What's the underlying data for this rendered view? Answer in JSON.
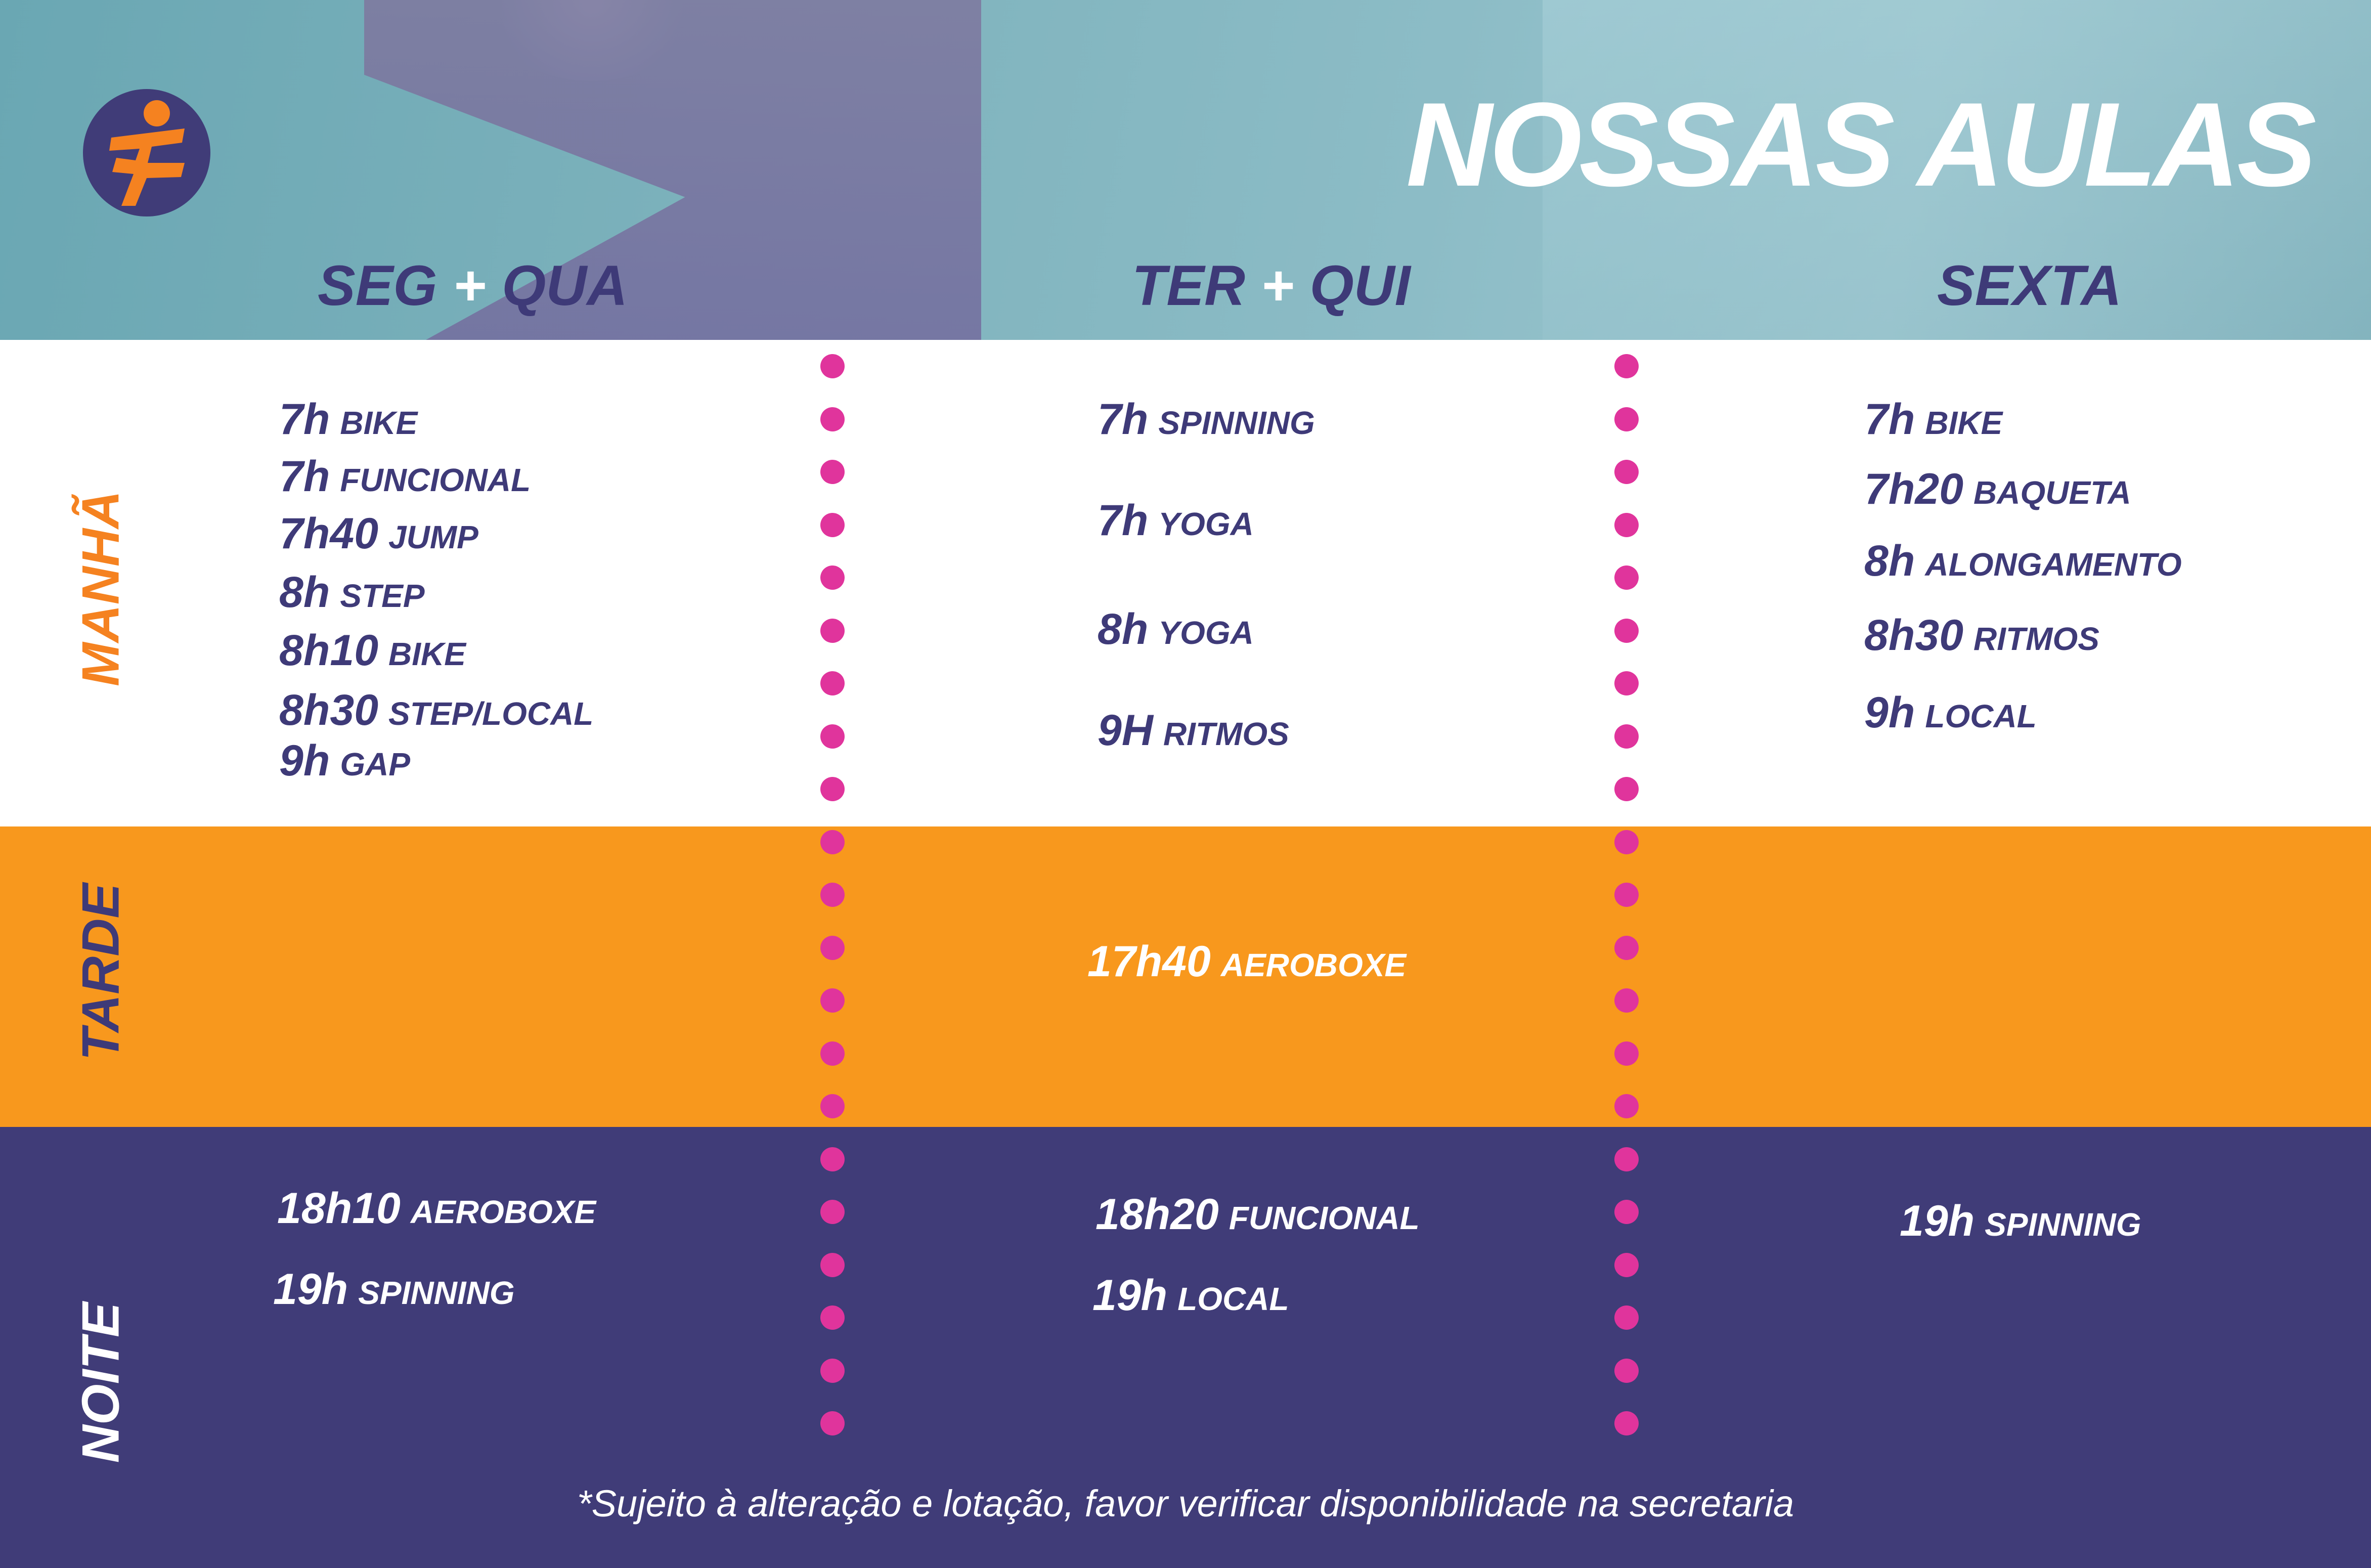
{
  "header": {
    "title": "NOSSAS AULAS"
  },
  "days": [
    {
      "a": "SEG",
      "plus": "+",
      "b": "QUA"
    },
    {
      "a": "TER",
      "plus": "+",
      "b": "QUI"
    },
    {
      "a": "SEXTA",
      "plus": "",
      "b": ""
    }
  ],
  "periods": {
    "morning": "MANHÃ",
    "afternoon": "TARDE",
    "night": "NOITE"
  },
  "morning": {
    "col1": [
      {
        "time": "7h",
        "class": "BIKE"
      },
      {
        "time": "7h",
        "class": "FUNCIONAL"
      },
      {
        "time": "7h40",
        "class": "JUMP"
      },
      {
        "time": "8h",
        "class": "STEP"
      },
      {
        "time": "8h10",
        "class": "BIKE"
      },
      {
        "time": "8h30",
        "class": "STEP/LOCAL"
      },
      {
        "time": "9h",
        "class": "GAP"
      }
    ],
    "col2": [
      {
        "time": "7h",
        "class": "SPINNING"
      },
      {
        "time": "7h",
        "class": "YOGA"
      },
      {
        "time": "8h",
        "class": "YOGA"
      },
      {
        "time": "9H",
        "class": "RITMOS"
      }
    ],
    "col3": [
      {
        "time": "7h",
        "class": "BIKE"
      },
      {
        "time": "7h20",
        "class": "BAQUETA"
      },
      {
        "time": "8h",
        "class": "ALONGAMENTO"
      },
      {
        "time": "8h30",
        "class": "RITMOS"
      },
      {
        "time": "9h",
        "class": "LOCAL"
      }
    ]
  },
  "afternoon": {
    "col2": [
      {
        "time": "17h40",
        "class": "AEROBOXE"
      }
    ]
  },
  "night": {
    "col1": [
      {
        "time": "18h10",
        "class": "AEROBOXE"
      },
      {
        "time": "19h",
        "class": "SPINNING"
      }
    ],
    "col2": [
      {
        "time": "18h20",
        "class": "FUNCIONAL"
      },
      {
        "time": "19h",
        "class": "LOCAL"
      }
    ],
    "col3": [
      {
        "time": "19h",
        "class": "SPINNING"
      }
    ]
  },
  "note": "*Sujeito à alteração e lotação, favor verificar disponibilidade na secretaria",
  "colors": {
    "navy": "#403c78",
    "orange": "#f8981d",
    "dot": "#e0349c",
    "header": "#7fb3bd"
  },
  "icons": {
    "logo": "runner-logo"
  }
}
